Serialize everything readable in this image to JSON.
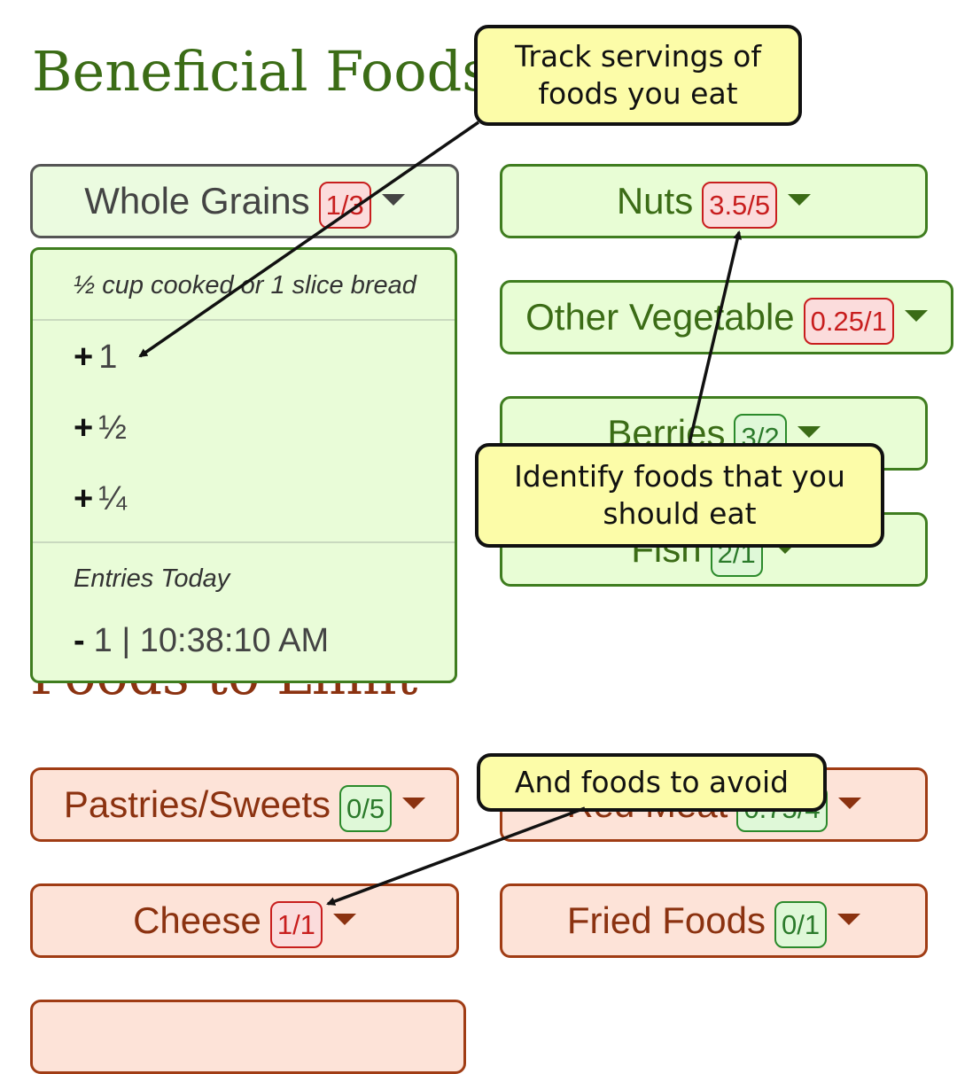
{
  "beneficial": {
    "heading": "Beneficial Foods",
    "buttons": [
      {
        "label": "Whole Grains",
        "count": "1/3",
        "status": "red"
      },
      {
        "label": "Nuts",
        "count": "3.5/5",
        "status": "red"
      },
      {
        "label": "Other Vegetable",
        "count": "0.25/1",
        "status": "red"
      },
      {
        "label": "Berries",
        "count": "3/2",
        "status": "green"
      },
      {
        "label": "Fish",
        "count": "2/1",
        "status": "green"
      }
    ]
  },
  "limit": {
    "heading": "Foods to Limit",
    "buttons": [
      {
        "label": "Pastries/Sweets",
        "count": "0/5",
        "status": "green"
      },
      {
        "label": "Red Meat",
        "count": "0.75/4",
        "status": "green"
      },
      {
        "label": "Cheese",
        "count": "1/1",
        "status": "red"
      },
      {
        "label": "Fried Foods",
        "count": "0/1",
        "status": "green"
      }
    ]
  },
  "menu": {
    "serving_hint": "½ cup cooked or 1 slice bread",
    "add_options": [
      {
        "symbol": "+",
        "amount": "1"
      },
      {
        "symbol": "+",
        "amount": "½"
      },
      {
        "symbol": "+",
        "amount": "¼"
      }
    ],
    "entries_title": "Entries Today",
    "entries": [
      {
        "symbol": "-",
        "text": "1 | 10:38:10 AM"
      }
    ]
  },
  "callouts": {
    "track": "Track servings of foods you eat",
    "identify": "Identify foods that you should eat",
    "avoid": "And foods to avoid"
  },
  "colors": {
    "beneficial_text": "#3b6c16",
    "beneficial_bg": "#e8fdd5",
    "limit_text": "#8b3210",
    "limit_bg": "#fde3d8",
    "badge_red": "#c81e1e",
    "badge_green": "#2b7a2b",
    "callout_bg": "#fcfca8"
  },
  "icons": {
    "dropdown": "caret-down-icon",
    "add": "plus-icon",
    "remove": "minus-icon"
  }
}
